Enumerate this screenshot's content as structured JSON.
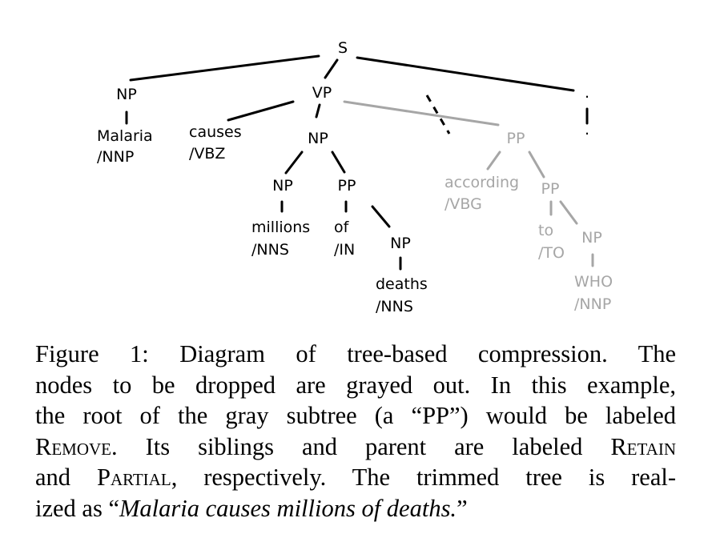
{
  "tree": {
    "root": "S",
    "vp": "VP",
    "np_subject": "NP",
    "malaria_word": "Malaria",
    "malaria_tag": "/NNP",
    "causes_word": "causes",
    "causes_tag": "/VBZ",
    "np_object": "NP",
    "np_millions": "NP",
    "millions_word": "millions",
    "millions_tag": "/NNS",
    "pp_of": "PP",
    "of_word": "of",
    "of_tag": "/IN",
    "np_deaths": "NP",
    "deaths_word": "deaths",
    "deaths_tag": "/NNS",
    "pp_removed": "PP",
    "according_word": "according",
    "according_tag": "/VBG",
    "pp_to": "PP",
    "to_word": "to",
    "to_tag": "/TO",
    "np_who": "NP",
    "who_word": "WHO",
    "who_tag": "/NNP",
    "period_label": "."
  },
  "colors": {
    "retained": "#000000",
    "dropped": "#a6a6a6"
  },
  "caption": {
    "figure_label": "Figure 1:",
    "line1_rest": "Diagram of tree-based compression. The",
    "line2": "nodes to be dropped are grayed out. In this example,",
    "line3": "the root of the gray subtree (a “PP”) would be labeled",
    "remove_label": "Remove",
    "line4_mid": ". Its siblings and parent are labeled",
    "retain_label": "Retain",
    "line5_start": "and",
    "partial_label": "Partial",
    "line5_rest": ", respectively. The trimmed tree is real-",
    "line6_start": "ized as “",
    "realized_sentence": "Malaria causes millions of deaths.",
    "line6_end": "”"
  }
}
